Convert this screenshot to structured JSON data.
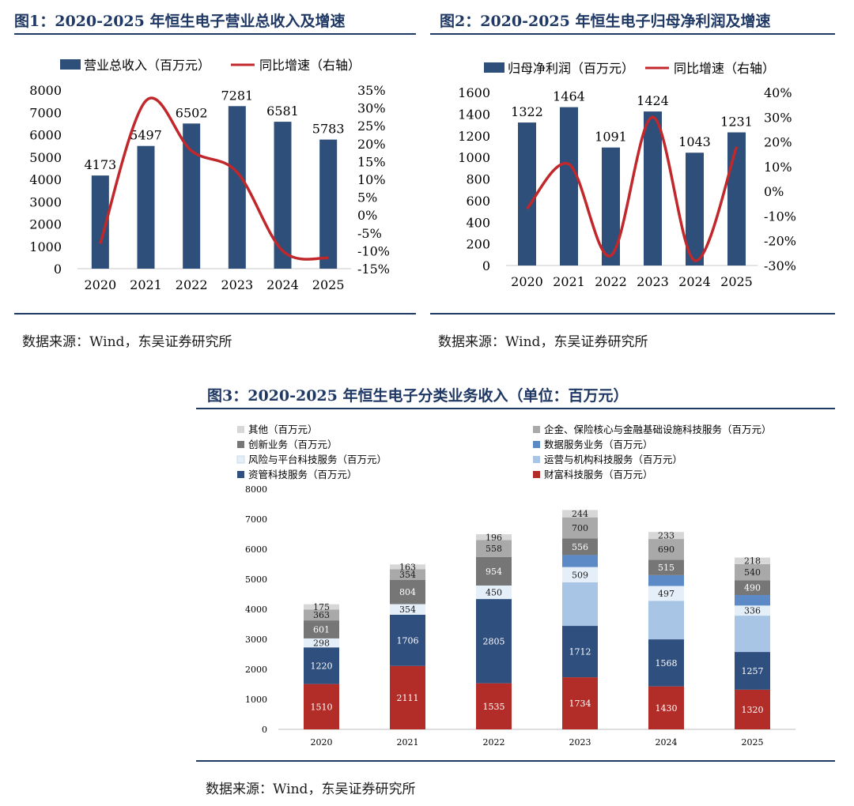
{
  "colors": {
    "navy": "#2e4f7a",
    "red": "#c0282b",
    "title": "#1f3864",
    "s_wealth": "#b32d28",
    "s_asset": "#2f4f7e",
    "s_ops": "#a8c5e5",
    "s_risk": "#e4effa",
    "s_data": "#5b8ac6",
    "s_innov": "#767676",
    "s_fin": "#a9a9a9",
    "s_other": "#d7d7d7"
  },
  "fig1": {
    "title": "图1：2020-2025 年恒生电子营业总收入及增速",
    "source": "数据来源：Wind，东吴证券研究所"
  },
  "fig2": {
    "title": "图2：2020-2025 年恒生电子归母净利润及增速",
    "source": "数据来源：Wind，东吴证券研究所"
  },
  "fig3": {
    "title": "图3：2020-2025 年恒生电子分类业务收入（单位：百万元）",
    "source": "数据来源：Wind，东吴证券研究所"
  },
  "chart_data": [
    {
      "type": "bar",
      "title": "图1：2020-2025 年恒生电子营业总收入及增速",
      "categories": [
        "2020",
        "2021",
        "2022",
        "2023",
        "2024",
        "2025"
      ],
      "series": [
        {
          "name": "营业总收入（百万元）",
          "type": "bar",
          "axis": "left",
          "values": [
            4173,
            5497,
            6502,
            7281,
            6581,
            5783
          ]
        },
        {
          "name": "同比增速（右轴）",
          "type": "line",
          "axis": "right",
          "values": [
            -8,
            32,
            18,
            12,
            -10,
            -12
          ]
        }
      ],
      "ylim": [
        0,
        8000
      ],
      "yticks": [
        "0",
        "1000",
        "2000",
        "3000",
        "4000",
        "5000",
        "6000",
        "7000",
        "8000"
      ],
      "y2lim": [
        -15,
        35
      ],
      "y2ticks": [
        "-15%",
        "-10%",
        "-5%",
        "0%",
        "5%",
        "10%",
        "15%",
        "20%",
        "25%",
        "30%",
        "35%"
      ],
      "legend_position": "top"
    },
    {
      "type": "bar",
      "title": "图2：2020-2025 年恒生电子归母净利润及增速",
      "categories": [
        "2020",
        "2021",
        "2022",
        "2023",
        "2024",
        "2025"
      ],
      "series": [
        {
          "name": "归母净利润（百万元）",
          "type": "bar",
          "axis": "left",
          "values": [
            1322,
            1464,
            1091,
            1424,
            1043,
            1231
          ]
        },
        {
          "name": "同比增速（右轴）",
          "type": "line",
          "axis": "right",
          "values": [
            -7,
            11,
            -26,
            30,
            -28,
            18
          ]
        }
      ],
      "ylim": [
        0,
        1600
      ],
      "yticks": [
        "0",
        "200",
        "400",
        "600",
        "800",
        "1000",
        "1200",
        "1400",
        "1600"
      ],
      "y2lim": [
        -30,
        40
      ],
      "y2ticks": [
        "-30%",
        "-20%",
        "-10%",
        "0%",
        "10%",
        "20%",
        "30%",
        "40%"
      ],
      "legend_position": "top"
    },
    {
      "type": "bar",
      "stacked": true,
      "title": "图3：2020-2025 年恒生电子分类业务收入（单位：百万元）",
      "categories": [
        "2020",
        "2021",
        "2022",
        "2023",
        "2024",
        "2025"
      ],
      "series": [
        {
          "name": "财富科技服务（百万元）",
          "values": [
            1510,
            2111,
            1535,
            1734,
            1430,
            1320
          ]
        },
        {
          "name": "资管科技服务（百万元）",
          "values": [
            1220,
            1706,
            2805,
            1712,
            1568,
            1257
          ]
        },
        {
          "name": "运营与机构科技服务（百万元）",
          "values": [
            0,
            0,
            0,
            1450,
            1280,
            1210
          ]
        },
        {
          "name": "风险与平台科技服务（百万元）",
          "values": [
            298,
            354,
            450,
            509,
            497,
            336
          ]
        },
        {
          "name": "数据服务业务（百万元）",
          "values": [
            0,
            0,
            0,
            400,
            360,
            350
          ]
        },
        {
          "name": "创新业务（百万元）",
          "values": [
            601,
            804,
            954,
            556,
            515,
            490
          ]
        },
        {
          "name": "企金、保险核心与金融基础设施科技服务（百万元）",
          "values": [
            363,
            354,
            558,
            700,
            690,
            540
          ]
        },
        {
          "name": "其他（百万元）",
          "values": [
            175,
            163,
            196,
            244,
            233,
            218
          ]
        }
      ],
      "labels": [
        [
          "1510",
          "1220",
          "",
          "298",
          "",
          "601",
          "363",
          "175"
        ],
        [
          "2111",
          "1706",
          "",
          "354",
          "",
          "804",
          "354",
          "163"
        ],
        [
          "1535",
          "2805",
          "",
          "450",
          "",
          "954",
          "558",
          "196"
        ],
        [
          "1734",
          "1712",
          "",
          "509",
          "",
          "556",
          "700",
          "244"
        ],
        [
          "1430",
          "1568",
          "",
          "497",
          "",
          "515",
          "690",
          "233"
        ],
        [
          "1320",
          "1257",
          "",
          "336",
          "",
          "490",
          "540",
          "218"
        ]
      ],
      "ylim": [
        0,
        8000
      ],
      "yticks": [
        "0",
        "1000",
        "2000",
        "3000",
        "4000",
        "5000",
        "6000",
        "7000",
        "8000"
      ],
      "legend_position": "top",
      "legend_left": [
        "其他（百万元）",
        "创新业务（百万元）",
        "风险与平台科技服务（百万元）",
        "资管科技服务（百万元）"
      ],
      "legend_right": [
        "企金、保险核心与金融基础设施科技服务（百万元）",
        "数据服务业务（百万元）",
        "运营与机构科技服务（百万元）",
        "财富科技服务（百万元）"
      ]
    }
  ]
}
